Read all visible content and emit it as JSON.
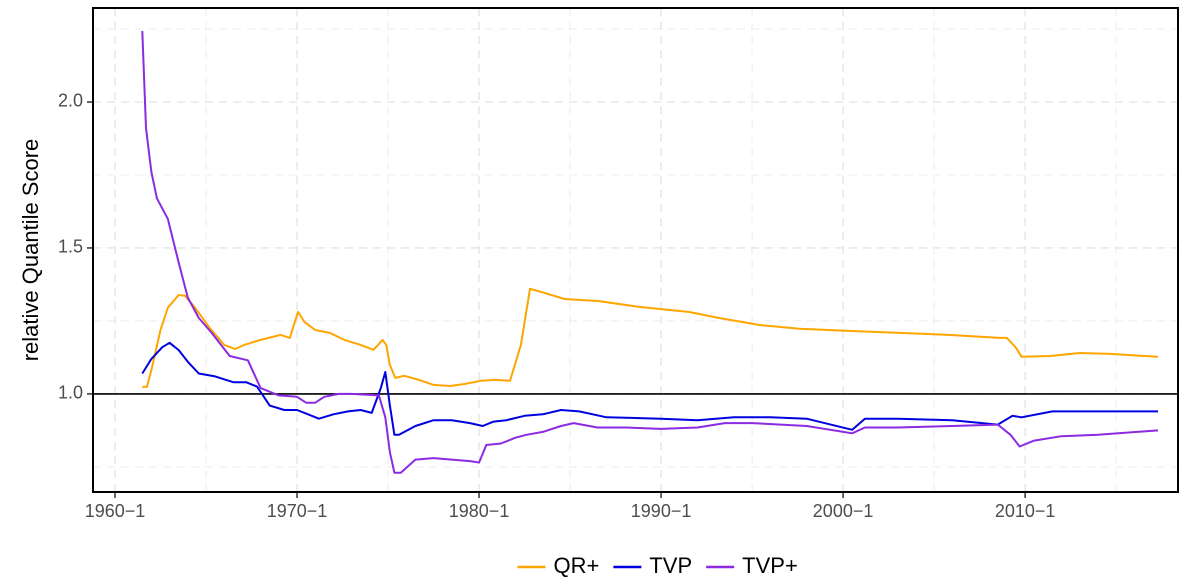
{
  "chart_data": {
    "type": "line",
    "y_label": "relative Quantile Score",
    "xlim": [
      1958.79,
      2018.4
    ],
    "xticks": [
      {
        "value": 1960,
        "label": "1960−1"
      },
      {
        "value": 1970,
        "label": "1970−1"
      },
      {
        "value": 1980,
        "label": "1980−1"
      },
      {
        "value": 1990,
        "label": "1990−1"
      },
      {
        "value": 2000,
        "label": "2000−1"
      },
      {
        "value": 2010,
        "label": "2010−1"
      }
    ],
    "minor_xticks": [
      1965,
      1975,
      1985,
      1995,
      2005,
      2015
    ],
    "ylim": [
      0.664,
      2.322
    ],
    "yticks": [
      {
        "value": 1,
        "label": "1.0"
      },
      1.5,
      {
        "value": 2,
        "label": "2.0"
      }
    ],
    "minor_yticks": [
      0.75,
      1.25,
      1.75,
      2.25
    ],
    "grid": true,
    "hline": 1,
    "legend": "bottom",
    "series": [
      {
        "name": "QR+",
        "color": "#FFA500",
        "x": [
          1961.5,
          1961.75,
          1962.0,
          1962.5,
          1962.9,
          1963.5,
          1963.85,
          1964.4,
          1965.2,
          1966.0,
          1966.6,
          1967.1,
          1968.0,
          1969.1,
          1969.6,
          1970.05,
          1970.4,
          1971.0,
          1971.8,
          1972.6,
          1973.5,
          1974.2,
          1974.7,
          1974.9,
          1975.1,
          1975.4,
          1975.9,
          1976.7,
          1977.5,
          1978.4,
          1979.2,
          1980.1,
          1980.9,
          1981.7,
          1982.3,
          1982.8,
          1983.6,
          1984.7,
          1986.6,
          1988.8,
          1991.5,
          1993.2,
          1995.4,
          1997.6,
          2000.3,
          2003.1,
          2005.8,
          2008.6,
          2009.0,
          2009.5,
          2009.8,
          2011.4,
          2013.0,
          2014.7,
          2017.3
        ],
        "values": [
          1.024,
          1.024,
          1.082,
          1.219,
          1.295,
          1.339,
          1.336,
          1.295,
          1.226,
          1.168,
          1.154,
          1.168,
          1.185,
          1.202,
          1.192,
          1.281,
          1.247,
          1.219,
          1.209,
          1.185,
          1.168,
          1.151,
          1.185,
          1.168,
          1.099,
          1.055,
          1.062,
          1.048,
          1.031,
          1.027,
          1.034,
          1.045,
          1.048,
          1.045,
          1.168,
          1.36,
          1.346,
          1.325,
          1.318,
          1.298,
          1.281,
          1.26,
          1.236,
          1.223,
          1.216,
          1.209,
          1.202,
          1.192,
          1.192,
          1.158,
          1.127,
          1.13,
          1.14,
          1.137,
          1.127
        ]
      },
      {
        "name": "TVP",
        "color": "#0000E0",
        "x": [
          1961.5,
          1962.0,
          1962.6,
          1963.0,
          1963.5,
          1964.0,
          1964.6,
          1965.5,
          1966.5,
          1967.2,
          1967.8,
          1968.5,
          1969.3,
          1970.0,
          1970.6,
          1971.2,
          1972.0,
          1972.8,
          1973.5,
          1974.1,
          1974.6,
          1974.85,
          1975.1,
          1975.35,
          1975.6,
          1976.5,
          1977.5,
          1978.5,
          1979.5,
          1980.2,
          1980.8,
          1981.5,
          1982.5,
          1983.5,
          1984.5,
          1985.5,
          1987,
          1990,
          1992,
          1994,
          1996,
          1998,
          2000.5,
          2001.2,
          2003,
          2006,
          2008.5,
          2009.3,
          2009.8,
          2011.5,
          2013,
          2017.3
        ],
        "values": [
          1.07,
          1.12,
          1.16,
          1.175,
          1.15,
          1.11,
          1.07,
          1.06,
          1.04,
          1.04,
          1.025,
          0.96,
          0.945,
          0.945,
          0.93,
          0.915,
          0.93,
          0.94,
          0.945,
          0.935,
          1.02,
          1.075,
          0.96,
          0.86,
          0.86,
          0.89,
          0.91,
          0.91,
          0.9,
          0.89,
          0.905,
          0.91,
          0.925,
          0.93,
          0.945,
          0.94,
          0.92,
          0.915,
          0.91,
          0.92,
          0.92,
          0.915,
          0.877,
          0.915,
          0.915,
          0.91,
          0.895,
          0.925,
          0.92,
          0.94,
          0.94,
          0.94
        ]
      },
      {
        "name": "TVP+",
        "color": "#8A2BE2",
        "x": [
          1961.5,
          1961.7,
          1962.0,
          1962.3,
          1962.9,
          1963.5,
          1964.0,
          1964.6,
          1965.3,
          1966.3,
          1967.3,
          1968.0,
          1969.0,
          1970.0,
          1970.5,
          1971.0,
          1971.5,
          1972.3,
          1973.0,
          1974.5,
          1974.85,
          1975.1,
          1975.35,
          1975.7,
          1976.5,
          1977.5,
          1978.5,
          1979.5,
          1980.0,
          1980.4,
          1981.2,
          1982.0,
          1982.6,
          1983.5,
          1984.5,
          1985.2,
          1986.5,
          1988,
          1990,
          1992,
          1993.5,
          1995,
          1998,
          2000.5,
          2001.2,
          2003,
          2006,
          2008.5,
          2009.2,
          2009.7,
          2010.5,
          2012,
          2014,
          2017.3
        ],
        "values": [
          2.243,
          1.911,
          1.76,
          1.67,
          1.6,
          1.45,
          1.33,
          1.26,
          1.21,
          1.13,
          1.115,
          1.02,
          0.995,
          0.99,
          0.97,
          0.97,
          0.99,
          1.0,
          1.0,
          0.995,
          0.92,
          0.8,
          0.73,
          0.73,
          0.775,
          0.78,
          0.775,
          0.77,
          0.765,
          0.825,
          0.83,
          0.85,
          0.86,
          0.87,
          0.89,
          0.9,
          0.885,
          0.885,
          0.88,
          0.885,
          0.9,
          0.9,
          0.89,
          0.865,
          0.885,
          0.885,
          0.89,
          0.895,
          0.86,
          0.82,
          0.84,
          0.855,
          0.86,
          0.875
        ]
      }
    ]
  }
}
